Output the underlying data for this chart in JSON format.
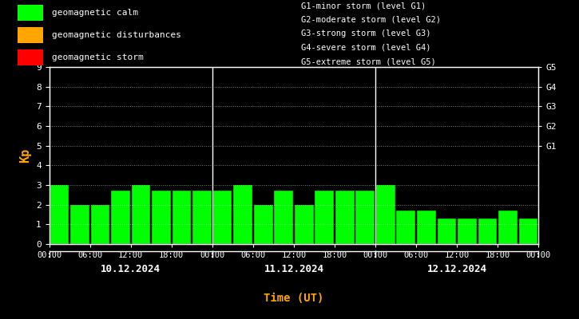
{
  "background_color": "#000000",
  "bar_color": "#00ff00",
  "text_color": "#ffffff",
  "xlabel_color": "#ffa500",
  "ylabel_color": "#ffa500",
  "kp_values": [
    3.0,
    2.0,
    2.0,
    2.7,
    3.0,
    2.7,
    2.7,
    2.7,
    2.7,
    3.0,
    2.0,
    2.7,
    2.0,
    2.7,
    2.7,
    2.7,
    3.0,
    1.7,
    1.7,
    1.3,
    1.3,
    1.3,
    1.7,
    1.3
  ],
  "ylim": [
    0,
    9
  ],
  "yticks": [
    0,
    1,
    2,
    3,
    4,
    5,
    6,
    7,
    8,
    9
  ],
  "g_labels": [
    "G1",
    "G2",
    "G3",
    "G4",
    "G5"
  ],
  "g_levels": [
    5,
    6,
    7,
    8,
    9
  ],
  "date_labels": [
    "10.12.2024",
    "11.12.2024",
    "12.12.2024"
  ],
  "xlabel": "Time (UT)",
  "ylabel": "Kp",
  "legend_items": [
    {
      "label": "geomagnetic calm",
      "color": "#00ff00"
    },
    {
      "label": "geomagnetic disturbances",
      "color": "#ffa500"
    },
    {
      "label": "geomagnetic storm",
      "color": "#ff0000"
    }
  ],
  "storm_labels": [
    "G1-minor storm (level G1)",
    "G2-moderate storm (level G2)",
    "G3-strong storm (level G3)",
    "G4-severe storm (level G4)",
    "G5-extreme storm (level G5)"
  ],
  "day_separators": [
    24,
    48
  ],
  "xtick_positions": [
    0,
    6,
    12,
    18,
    24,
    30,
    36,
    42,
    48,
    54,
    60,
    66,
    72
  ],
  "xtick_labels": [
    "00:00",
    "06:00",
    "12:00",
    "18:00",
    "00:00",
    "06:00",
    "12:00",
    "18:00",
    "00:00",
    "06:00",
    "12:00",
    "18:00",
    "00:00"
  ]
}
